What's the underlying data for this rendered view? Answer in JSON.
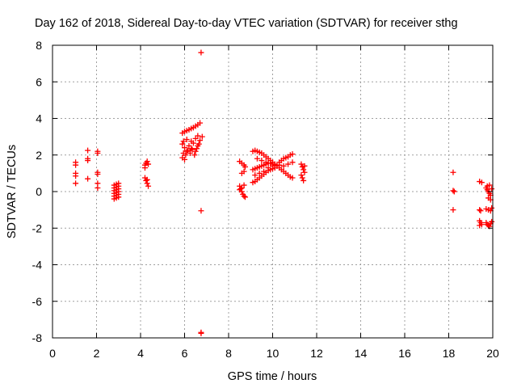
{
  "chart_data": {
    "type": "scatter",
    "title": "Day 162 of 2018, Sidereal Day-to-day VTEC variation (SDTVAR) for receiver sthg",
    "xlabel": "GPS time / hours",
    "ylabel": "SDTVAR / TECUs",
    "xlim": [
      0,
      20
    ],
    "ylim": [
      -8,
      8
    ],
    "xticks": [
      0,
      2,
      4,
      6,
      8,
      10,
      12,
      14,
      16,
      18,
      20
    ],
    "yticks": [
      -8,
      -6,
      -4,
      -2,
      0,
      2,
      4,
      6,
      8
    ],
    "grid": true,
    "marker": "+",
    "color": "#ff0000",
    "series": [
      {
        "name": "SDTVAR",
        "points": [
          [
            1.05,
            1.6
          ],
          [
            1.05,
            1.45
          ],
          [
            1.05,
            1.0
          ],
          [
            1.05,
            0.85
          ],
          [
            1.05,
            0.45
          ],
          [
            1.6,
            2.25
          ],
          [
            1.6,
            1.8
          ],
          [
            1.6,
            1.7
          ],
          [
            1.6,
            0.7
          ],
          [
            2.05,
            2.2
          ],
          [
            2.05,
            2.1
          ],
          [
            2.05,
            1.05
          ],
          [
            2.05,
            0.95
          ],
          [
            2.05,
            0.45
          ],
          [
            2.05,
            0.2
          ],
          [
            2.8,
            0.35
          ],
          [
            2.8,
            0.2
          ],
          [
            2.8,
            0.05
          ],
          [
            2.8,
            -0.1
          ],
          [
            2.8,
            -0.25
          ],
          [
            2.8,
            -0.4
          ],
          [
            2.9,
            0.4
          ],
          [
            2.9,
            0.25
          ],
          [
            2.9,
            0.1
          ],
          [
            2.9,
            -0.05
          ],
          [
            2.9,
            -0.2
          ],
          [
            2.9,
            -0.35
          ],
          [
            3.0,
            0.45
          ],
          [
            3.0,
            0.3
          ],
          [
            3.0,
            0.15
          ],
          [
            3.0,
            0.0
          ],
          [
            3.0,
            -0.15
          ],
          [
            3.0,
            -0.3
          ],
          [
            4.2,
            1.45
          ],
          [
            4.25,
            1.55
          ],
          [
            4.3,
            1.65
          ],
          [
            4.35,
            1.5
          ],
          [
            4.2,
            1.3
          ],
          [
            4.2,
            0.75
          ],
          [
            4.25,
            0.6
          ],
          [
            4.3,
            0.45
          ],
          [
            4.35,
            0.3
          ],
          [
            4.3,
            0.65
          ],
          [
            5.9,
            3.2
          ],
          [
            6.0,
            3.28
          ],
          [
            6.1,
            3.33
          ],
          [
            6.2,
            3.38
          ],
          [
            6.3,
            3.45
          ],
          [
            6.4,
            3.5
          ],
          [
            6.5,
            3.58
          ],
          [
            6.6,
            3.65
          ],
          [
            6.7,
            3.75
          ],
          [
            5.9,
            2.6
          ],
          [
            6.0,
            2.4
          ],
          [
            6.1,
            2.2
          ],
          [
            6.2,
            2.5
          ],
          [
            6.3,
            2.35
          ],
          [
            6.4,
            2.65
          ],
          [
            6.5,
            2.2
          ],
          [
            6.6,
            2.5
          ],
          [
            6.7,
            2.8
          ],
          [
            5.95,
            2.1
          ],
          [
            6.05,
            2.0
          ],
          [
            6.15,
            2.25
          ],
          [
            6.25,
            2.1
          ],
          [
            6.35,
            2.3
          ],
          [
            6.45,
            2.0
          ],
          [
            6.55,
            2.35
          ],
          [
            6.65,
            2.6
          ],
          [
            5.9,
            1.85
          ],
          [
            6.0,
            1.75
          ],
          [
            5.95,
            2.75
          ],
          [
            6.1,
            2.85
          ],
          [
            6.3,
            2.75
          ],
          [
            6.5,
            2.9
          ],
          [
            6.6,
            3.05
          ],
          [
            6.8,
            3.0
          ],
          [
            6.75,
            7.6
          ],
          [
            6.75,
            -1.05
          ],
          [
            6.75,
            -7.7
          ],
          [
            6.75,
            -7.75
          ],
          [
            8.5,
            1.65
          ],
          [
            8.6,
            1.55
          ],
          [
            8.7,
            1.45
          ],
          [
            8.75,
            1.35
          ],
          [
            8.6,
            1.0
          ],
          [
            8.7,
            1.1
          ],
          [
            8.5,
            0.3
          ],
          [
            8.55,
            0.15
          ],
          [
            8.6,
            0.0
          ],
          [
            8.65,
            -0.15
          ],
          [
            8.7,
            -0.25
          ],
          [
            8.75,
            -0.3
          ],
          [
            8.5,
            0.1
          ],
          [
            8.6,
            0.2
          ],
          [
            8.7,
            0.35
          ],
          [
            9.1,
            2.2
          ],
          [
            9.2,
            2.25
          ],
          [
            9.3,
            2.2
          ],
          [
            9.4,
            2.15
          ],
          [
            9.5,
            2.1
          ],
          [
            9.6,
            2.0
          ],
          [
            9.7,
            1.9
          ],
          [
            9.8,
            1.8
          ],
          [
            9.9,
            1.7
          ],
          [
            10.0,
            1.6
          ],
          [
            10.1,
            1.5
          ],
          [
            10.2,
            1.4
          ],
          [
            9.1,
            1.2
          ],
          [
            9.2,
            1.25
          ],
          [
            9.3,
            1.3
          ],
          [
            9.4,
            1.35
          ],
          [
            9.5,
            1.4
          ],
          [
            9.6,
            1.45
          ],
          [
            9.7,
            1.5
          ],
          [
            9.8,
            1.55
          ],
          [
            9.9,
            1.55
          ],
          [
            10.0,
            1.5
          ],
          [
            10.1,
            1.45
          ],
          [
            10.2,
            1.4
          ],
          [
            9.1,
            0.5
          ],
          [
            9.2,
            0.55
          ],
          [
            9.3,
            0.65
          ],
          [
            9.4,
            0.75
          ],
          [
            9.5,
            0.85
          ],
          [
            9.6,
            0.95
          ],
          [
            9.7,
            1.05
          ],
          [
            9.8,
            1.15
          ],
          [
            9.9,
            1.2
          ],
          [
            10.0,
            1.25
          ],
          [
            10.1,
            1.3
          ],
          [
            9.2,
            0.9
          ],
          [
            9.4,
            1.0
          ],
          [
            9.6,
            1.1
          ],
          [
            9.8,
            1.3
          ],
          [
            10.0,
            1.4
          ],
          [
            9.3,
            1.8
          ],
          [
            9.5,
            1.7
          ],
          [
            9.7,
            1.6
          ],
          [
            10.3,
            1.3
          ],
          [
            10.4,
            1.2
          ],
          [
            10.5,
            1.1
          ],
          [
            10.6,
            1.0
          ],
          [
            10.7,
            0.9
          ],
          [
            10.8,
            0.8
          ],
          [
            10.9,
            0.75
          ],
          [
            10.3,
            1.6
          ],
          [
            10.4,
            1.7
          ],
          [
            10.5,
            1.8
          ],
          [
            10.6,
            1.85
          ],
          [
            10.7,
            1.9
          ],
          [
            10.8,
            2.0
          ],
          [
            10.9,
            2.05
          ],
          [
            10.3,
            1.45
          ],
          [
            10.5,
            1.4
          ],
          [
            10.7,
            1.5
          ],
          [
            10.9,
            1.6
          ],
          [
            11.3,
            1.5
          ],
          [
            11.35,
            1.35
          ],
          [
            11.4,
            1.2
          ],
          [
            11.45,
            1.05
          ],
          [
            11.3,
            0.9
          ],
          [
            11.35,
            0.75
          ],
          [
            11.4,
            0.6
          ],
          [
            11.45,
            1.4
          ],
          [
            18.2,
            1.05
          ],
          [
            18.2,
            0.05
          ],
          [
            18.25,
            0.0
          ],
          [
            18.2,
            -1.0
          ],
          [
            19.4,
            0.55
          ],
          [
            19.5,
            0.5
          ],
          [
            19.4,
            -1.0
          ],
          [
            19.45,
            -1.05
          ],
          [
            19.4,
            -1.6
          ],
          [
            19.45,
            -1.7
          ],
          [
            19.5,
            -1.8
          ],
          [
            19.4,
            -1.85
          ],
          [
            19.7,
            -1.7
          ],
          [
            19.75,
            -1.8
          ],
          [
            19.8,
            -1.85
          ],
          [
            19.85,
            -1.9
          ],
          [
            19.9,
            -1.75
          ],
          [
            19.95,
            -1.65
          ],
          [
            19.7,
            -0.95
          ],
          [
            19.8,
            -1.0
          ],
          [
            19.9,
            -1.05
          ],
          [
            19.95,
            -0.9
          ],
          [
            19.7,
            0.2
          ],
          [
            19.75,
            0.1
          ],
          [
            19.8,
            0.0
          ],
          [
            19.85,
            -0.1
          ],
          [
            19.9,
            -0.2
          ],
          [
            19.95,
            0.15
          ],
          [
            19.8,
            -0.35
          ],
          [
            19.9,
            -0.45
          ],
          [
            19.75,
            0.3
          ],
          [
            19.85,
            0.35
          ]
        ]
      }
    ]
  }
}
